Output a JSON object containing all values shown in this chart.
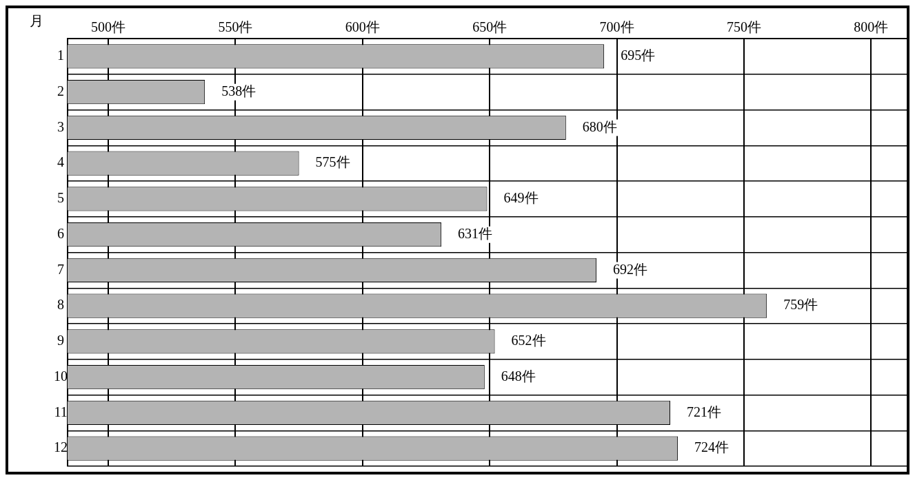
{
  "chart_data": {
    "type": "bar",
    "orientation": "horizontal",
    "ylabel": "月",
    "categories": [
      "1",
      "2",
      "3",
      "4",
      "5",
      "6",
      "7",
      "8",
      "9",
      "10",
      "11",
      "12"
    ],
    "values": [
      695,
      538,
      680,
      575,
      649,
      631,
      692,
      759,
      652,
      648,
      721,
      724
    ],
    "value_labels": [
      "695件",
      "538件",
      "680件",
      "575件",
      "649件",
      "631件",
      "692件",
      "759件",
      "652件",
      "648件",
      "721件",
      "724件"
    ],
    "color": "#b4b4b4",
    "xlim": [
      484,
      814
    ],
    "xticks": [
      {
        "value": 500,
        "label": "500件"
      },
      {
        "value": 550,
        "label": "550件"
      },
      {
        "value": 600,
        "label": "600件"
      },
      {
        "value": 650,
        "label": "650件"
      },
      {
        "value": 700,
        "label": "700件"
      },
      {
        "value": 750,
        "label": "750件"
      },
      {
        "value": 800,
        "label": "800件"
      }
    ],
    "grid": true,
    "legend": false
  }
}
